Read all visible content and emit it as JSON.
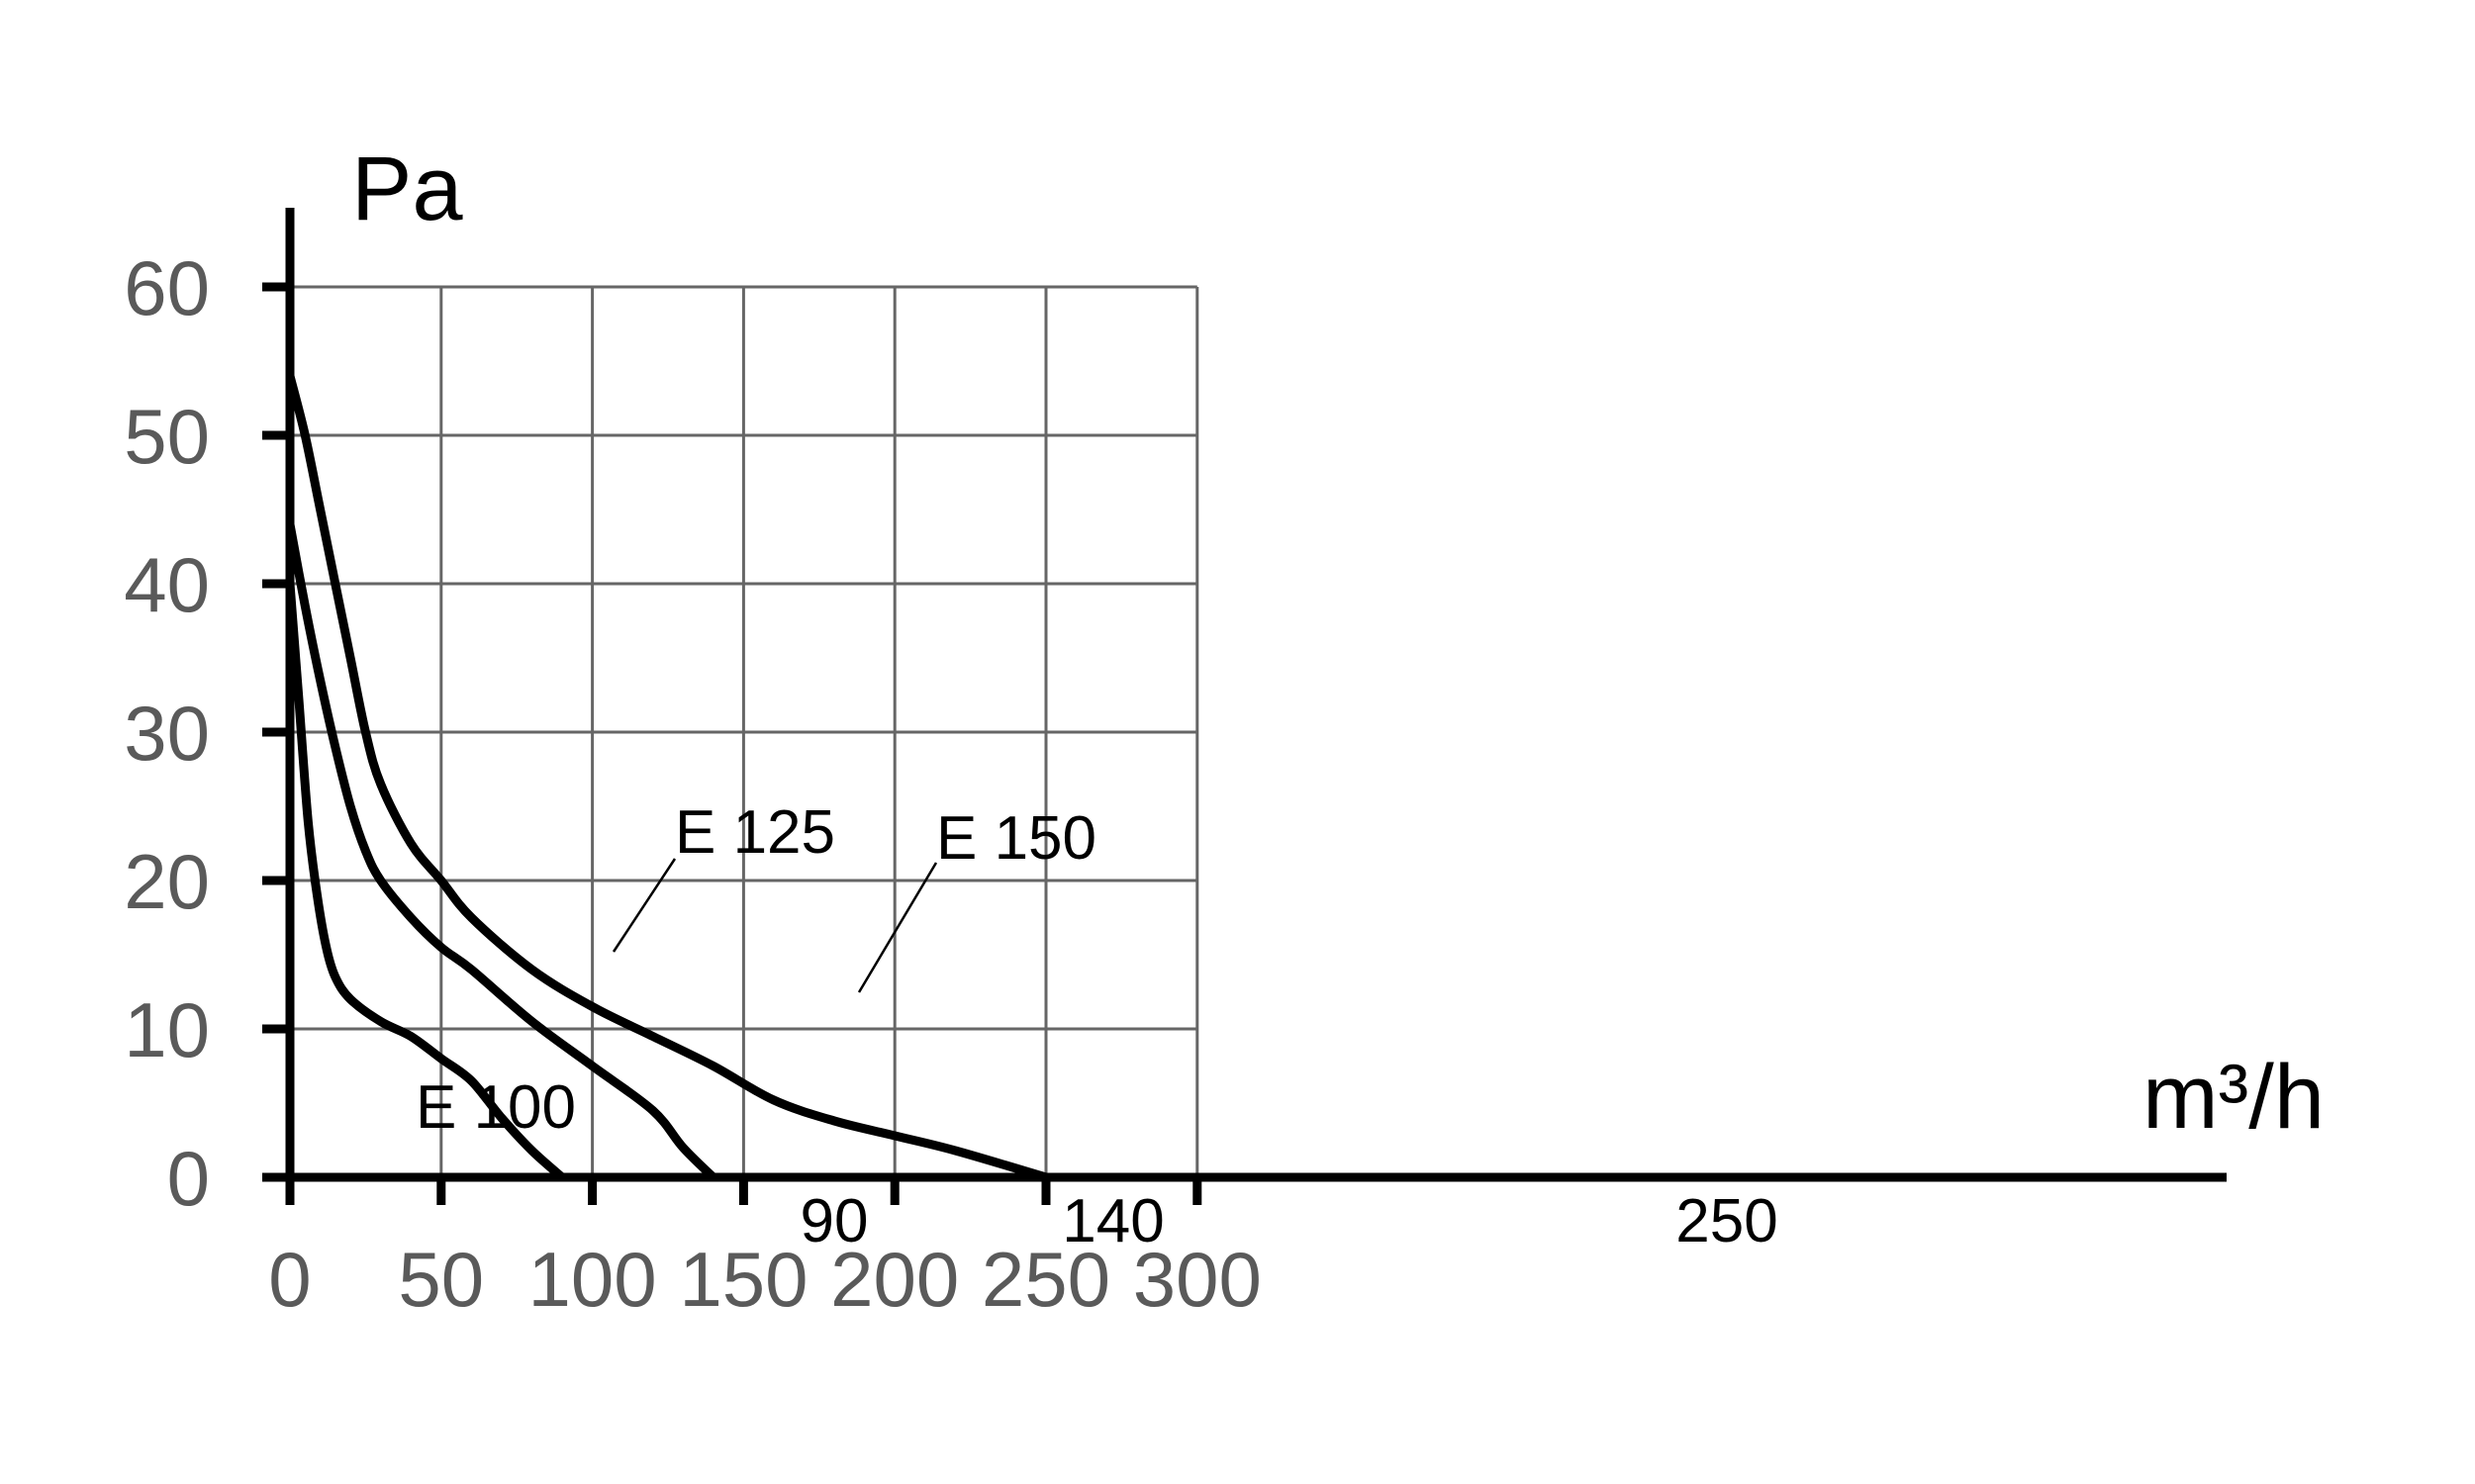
{
  "chart_data": {
    "type": "line",
    "title": "",
    "xlabel": "m³/h",
    "ylabel": "Pa",
    "xlim": [
      0,
      300
    ],
    "ylim": [
      0,
      60
    ],
    "x_ticks": [
      "0",
      "50",
      "100",
      "150",
      "200",
      "250",
      "300"
    ],
    "y_ticks": [
      "0",
      "10",
      "20",
      "30",
      "40",
      "50",
      "60"
    ],
    "grid": true,
    "series": [
      {
        "name": "E 100",
        "x": [
          0,
          3,
          6,
          9,
          12,
          15,
          20,
          30,
          40,
          50,
          60,
          70,
          80,
          90
        ],
        "y": [
          40,
          32,
          24,
          19,
          15.5,
          13.5,
          12,
          10.5,
          9.5,
          8,
          6.5,
          4,
          1.8,
          0
        ],
        "end_label": "90"
      },
      {
        "name": "E 125",
        "x": [
          0,
          5,
          10,
          15,
          20,
          25,
          30,
          40,
          50,
          60,
          80,
          100,
          120,
          130,
          140
        ],
        "y": [
          44,
          38.5,
          33.5,
          29,
          25,
          22,
          20,
          17.5,
          15.5,
          14,
          10.5,
          7.5,
          4.5,
          2,
          0
        ],
        "end_label": "140"
      },
      {
        "name": "E 150",
        "x": [
          0,
          5,
          10,
          15,
          20,
          25,
          30,
          40,
          50,
          60,
          80,
          100,
          120,
          140,
          160,
          180,
          200,
          220,
          250
        ],
        "y": [
          54,
          50,
          45,
          40,
          35,
          30,
          26.5,
          22.5,
          20,
          17.5,
          14,
          11.5,
          9.5,
          7.5,
          5.2,
          3.8,
          2.8,
          1.8,
          0
        ],
        "end_label": "250"
      }
    ]
  }
}
